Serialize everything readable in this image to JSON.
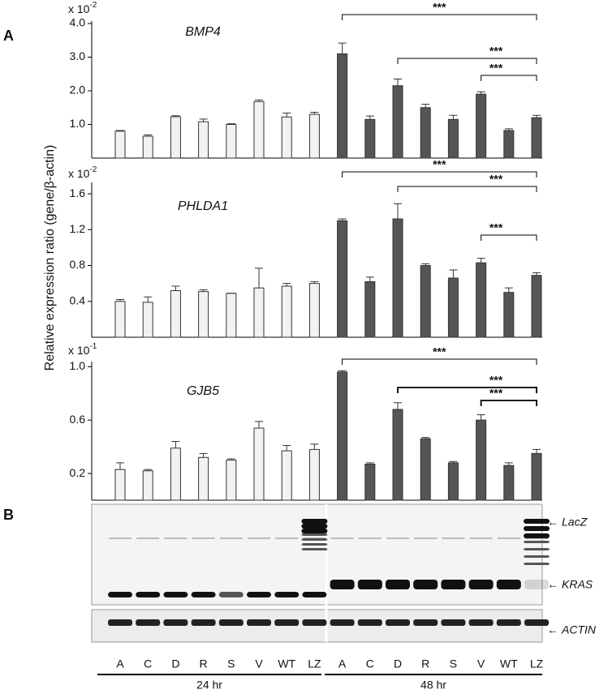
{
  "panel_labels": [
    "A",
    "B"
  ],
  "y_label": "Relative expression ratio (gene/β-actin)",
  "chart_data": [
    {
      "type": "bar",
      "title": "BMP4",
      "multiplier": {
        "base": "x 10",
        "exponent": "-2"
      },
      "ylim": [
        0,
        4
      ],
      "yticks": [
        {
          "value": 1,
          "label": "1.0"
        },
        {
          "value": 2,
          "label": "2.0"
        },
        {
          "value": 3,
          "label": "3.0"
        },
        {
          "value": 4,
          "label": "4.0"
        }
      ],
      "series": [
        {
          "color": "#f2f2f2",
          "values": [
            0.8,
            0.65,
            1.23,
            1.08,
            1.0,
            1.68,
            1.22,
            1.3
          ],
          "errors": [
            0.02,
            0.04,
            0.03,
            0.08,
            0.02,
            0.05,
            0.12,
            0.06
          ]
        },
        {
          "color": "#555555",
          "values": [
            3.1,
            1.15,
            2.15,
            1.5,
            1.15,
            1.9,
            0.82,
            1.2
          ],
          "errors": [
            0.32,
            0.1,
            0.2,
            0.1,
            0.12,
            0.07,
            0.05,
            0.07
          ]
        }
      ],
      "annotations": [
        "***",
        "***",
        "***"
      ]
    },
    {
      "type": "bar",
      "title": "PHLDA1",
      "multiplier": {
        "base": "x 10",
        "exponent": "-2"
      },
      "ylim": [
        0,
        1.7
      ],
      "yticks": [
        0.4,
        0.8,
        1.2,
        1.6
      ],
      "series": [
        {
          "color": "#f2f2f2",
          "values": [
            0.4,
            0.39,
            0.52,
            0.51,
            0.49,
            0.55,
            0.57,
            0.6
          ],
          "errors": [
            0.02,
            0.06,
            0.05,
            0.02,
            0,
            0.22,
            0.03,
            0.02
          ]
        },
        {
          "color": "#555555",
          "values": [
            1.3,
            0.62,
            1.32,
            0.8,
            0.66,
            0.83,
            0.5,
            0.69
          ],
          "errors": [
            0.02,
            0.05,
            0.17,
            0.02,
            0.09,
            0.05,
            0.05,
            0.03
          ]
        }
      ],
      "annotations": [
        "***",
        "***",
        "***"
      ]
    },
    {
      "type": "bar",
      "title": "GJB5",
      "multiplier": {
        "base": "x 10",
        "exponent": "-1"
      },
      "ylim": [
        0,
        1.02
      ],
      "yticks": [
        0.2,
        0.6,
        {
          "value": 1,
          "label": "1.0"
        }
      ],
      "series": [
        {
          "color": "#f2f2f2",
          "values": [
            0.23,
            0.22,
            0.39,
            0.32,
            0.3,
            0.54,
            0.37,
            0.38
          ],
          "errors": [
            0.05,
            0.01,
            0.05,
            0.03,
            0.01,
            0.05,
            0.04,
            0.04
          ]
        },
        {
          "color": "#555555",
          "values": [
            0.96,
            0.27,
            0.68,
            0.46,
            0.28,
            0.6,
            0.26,
            0.35
          ],
          "errors": [
            0.01,
            0.01,
            0.05,
            0.01,
            0.01,
            0.04,
            0.02,
            0.03
          ]
        }
      ],
      "annotations": [
        "***",
        "***",
        "***"
      ]
    }
  ],
  "blot": {
    "bands": [
      "LacZ",
      "KRAS",
      "ACTIN"
    ],
    "lanes": [
      "A",
      "C",
      "D",
      "R",
      "S",
      "V",
      "WT",
      "LZ",
      "A",
      "C",
      "D",
      "R",
      "S",
      "V",
      "WT",
      "LZ"
    ],
    "groups": [
      "24 hr",
      "48 hr"
    ]
  }
}
